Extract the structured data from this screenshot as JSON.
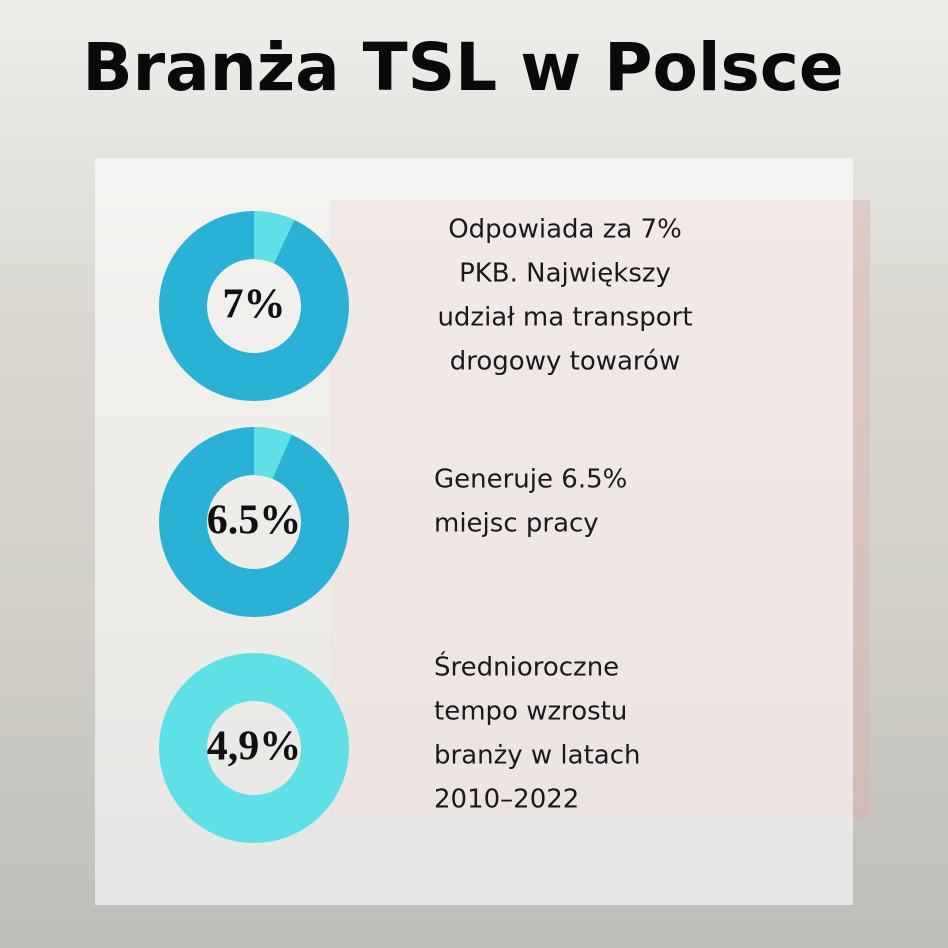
{
  "title": "Branża TSL w Polsce",
  "items": [
    {
      "label": "7%",
      "value": 7,
      "text": [
        "Odpowiada za 7%",
        "PKB. Największy",
        "udział ma transport",
        "drogowy towarów"
      ]
    },
    {
      "label": "6.5%",
      "value": 6.5,
      "text": [
        "Generuje 6.5%",
        "miejsc pracy"
      ]
    },
    {
      "label": "4,9%",
      "text": [
        "Średnioroczne",
        "tempo wzrostu",
        "branży w latach",
        "2010–2022"
      ]
    }
  ]
}
